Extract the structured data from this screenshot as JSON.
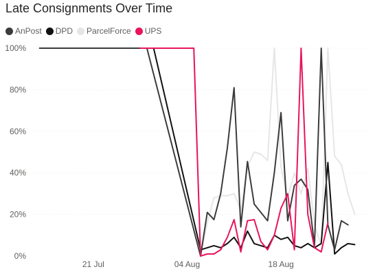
{
  "chart_data": {
    "type": "line",
    "title": "Late Consignments Over Time",
    "xlabel": "",
    "ylabel": "",
    "y_unit": "%",
    "ylim": [
      0,
      100
    ],
    "y_ticks": [
      0,
      20,
      40,
      60,
      80,
      100
    ],
    "y_tick_labels": [
      "0%",
      "20%",
      "40%",
      "60%",
      "80%",
      "100%"
    ],
    "x_ticks": [
      "2021-07-21",
      "2021-08-04",
      "2021-08-18"
    ],
    "x_tick_labels": [
      "21 Jul",
      "04 Aug",
      "18 Aug"
    ],
    "xlim": [
      "2021-07-12",
      "2021-08-31"
    ],
    "grid": "horizontal",
    "legend": "top-left",
    "series": [
      {
        "name": "AnPost",
        "color": "#3b3b3b",
        "points": [
          [
            "2021-07-13",
            100
          ],
          [
            "2021-07-29",
            100
          ],
          [
            "2021-08-06",
            0
          ],
          [
            "2021-08-07",
            21
          ],
          [
            "2021-08-08",
            17.5
          ],
          [
            "2021-08-09",
            30
          ],
          [
            "2021-08-10",
            52
          ],
          [
            "2021-08-11",
            81
          ],
          [
            "2021-08-12",
            14
          ],
          [
            "2021-08-13",
            45.5
          ],
          [
            "2021-08-14",
            25
          ],
          [
            "2021-08-15",
            21
          ],
          [
            "2021-08-16",
            17
          ],
          [
            "2021-08-17",
            40
          ],
          [
            "2021-08-18",
            69
          ],
          [
            "2021-08-19",
            17
          ],
          [
            "2021-08-20",
            34
          ],
          [
            "2021-08-21",
            37
          ],
          [
            "2021-08-22",
            32
          ],
          [
            "2021-08-23",
            5
          ],
          [
            "2021-08-24",
            100
          ],
          [
            "2021-08-25",
            15
          ],
          [
            "2021-08-26",
            3
          ],
          [
            "2021-08-27",
            17
          ],
          [
            "2021-08-28",
            15
          ]
        ]
      },
      {
        "name": "DPD",
        "color": "#111111",
        "points": [
          [
            "2021-07-13",
            100
          ],
          [
            "2021-07-30",
            100
          ],
          [
            "2021-08-06",
            3
          ],
          [
            "2021-08-07",
            4
          ],
          [
            "2021-08-08",
            5
          ],
          [
            "2021-08-09",
            4
          ],
          [
            "2021-08-10",
            6
          ],
          [
            "2021-08-11",
            9
          ],
          [
            "2021-08-12",
            4
          ],
          [
            "2021-08-13",
            12
          ],
          [
            "2021-08-14",
            6
          ],
          [
            "2021-08-15",
            5
          ],
          [
            "2021-08-16",
            4
          ],
          [
            "2021-08-17",
            10
          ],
          [
            "2021-08-18",
            8
          ],
          [
            "2021-08-19",
            9
          ],
          [
            "2021-08-20",
            5
          ],
          [
            "2021-08-21",
            4
          ],
          [
            "2021-08-22",
            6
          ],
          [
            "2021-08-23",
            4
          ],
          [
            "2021-08-24",
            6
          ],
          [
            "2021-08-25",
            45
          ],
          [
            "2021-08-26",
            1
          ],
          [
            "2021-08-27",
            4
          ],
          [
            "2021-08-28",
            6
          ],
          [
            "2021-08-29",
            5.5
          ]
        ]
      },
      {
        "name": "ParcelForce",
        "color": "#e6e6e6",
        "points": [
          [
            "2021-07-13",
            100
          ],
          [
            "2021-08-05",
            100
          ],
          [
            "2021-08-06",
            0
          ],
          [
            "2021-08-07",
            16
          ],
          [
            "2021-08-08",
            28
          ],
          [
            "2021-08-09",
            29
          ],
          [
            "2021-08-10",
            29
          ],
          [
            "2021-08-11",
            30
          ],
          [
            "2021-08-12",
            22
          ],
          [
            "2021-08-13",
            43
          ],
          [
            "2021-08-14",
            50
          ],
          [
            "2021-08-15",
            49
          ],
          [
            "2021-08-16",
            46
          ],
          [
            "2021-08-17",
            100
          ],
          [
            "2021-08-18",
            43
          ],
          [
            "2021-08-19",
            28
          ],
          [
            "2021-08-20",
            40
          ],
          [
            "2021-08-21",
            30
          ],
          [
            "2021-08-22",
            42
          ],
          [
            "2021-08-23",
            15
          ],
          [
            "2021-08-24",
            5
          ],
          [
            "2021-08-25",
            100
          ],
          [
            "2021-08-26",
            48
          ],
          [
            "2021-08-27",
            44
          ],
          [
            "2021-08-28",
            30
          ],
          [
            "2021-08-29",
            20
          ]
        ]
      },
      {
        "name": "UPS",
        "color": "#e8145c",
        "points": [
          [
            "2021-07-28",
            100
          ],
          [
            "2021-08-05",
            100
          ],
          [
            "2021-08-06",
            0
          ],
          [
            "2021-08-07",
            1
          ],
          [
            "2021-08-08",
            1
          ],
          [
            "2021-08-09",
            3
          ],
          [
            "2021-08-10",
            9
          ],
          [
            "2021-08-11",
            17.5
          ],
          [
            "2021-08-12",
            2
          ],
          [
            "2021-08-13",
            17
          ],
          [
            "2021-08-14",
            17.5
          ],
          [
            "2021-08-15",
            7
          ],
          [
            "2021-08-16",
            3
          ],
          [
            "2021-08-17",
            10
          ],
          [
            "2021-08-18",
            23
          ],
          [
            "2021-08-19",
            30
          ],
          [
            "2021-08-20",
            3
          ],
          [
            "2021-08-21",
            100
          ],
          [
            "2021-08-22",
            20
          ],
          [
            "2021-08-23",
            4
          ],
          [
            "2021-08-24",
            2
          ],
          [
            "2021-08-25",
            16
          ]
        ]
      }
    ]
  }
}
